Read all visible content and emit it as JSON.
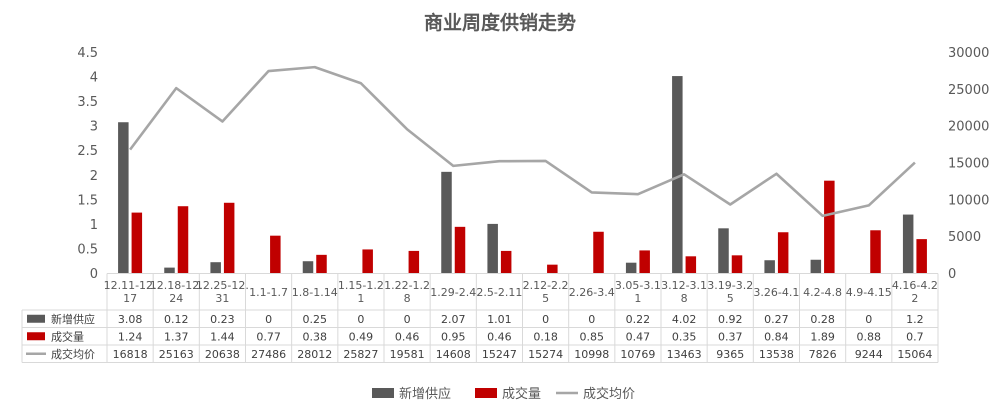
{
  "chart_data": {
    "type": "bar",
    "title": "商业周度供销走势",
    "categories": [
      "12.11-12.17",
      "12.18-12.24",
      "12.25-12.31",
      "1.1-1.7",
      "1.8-1.14",
      "1.15-1.21",
      "1.22-1.28",
      "1.29-2.4",
      "2.5-2.11",
      "2.12-2.25",
      "2.26-3.4",
      "3.05-3.11",
      "3.12-3.18",
      "3.19-3.25",
      "3.26-4.1",
      "4.2-4.8",
      "4.9-4.15",
      "4.16-4.22"
    ],
    "category_labels": [
      [
        "12.11-12.",
        "17"
      ],
      [
        "12.18-12.",
        "24"
      ],
      [
        "12.25-12.",
        "31"
      ],
      [
        "1.1-1.7"
      ],
      [
        "1.8-1.14"
      ],
      [
        "1.15-1.2",
        "1"
      ],
      [
        "1.22-1.2",
        "8"
      ],
      [
        "1.29-2.4"
      ],
      [
        "2.5-2.11"
      ],
      [
        "2.12-2.2",
        "5"
      ],
      [
        "2.26-3.4"
      ],
      [
        "3.05-3.1",
        "1"
      ],
      [
        "3.12-3.1",
        "8"
      ],
      [
        "3.19-3.2",
        "5"
      ],
      [
        "3.26-4.1"
      ],
      [
        "4.2-4.8"
      ],
      [
        "4.9-4.15"
      ],
      [
        "4.16-4.2",
        "2"
      ]
    ],
    "series": [
      {
        "name": "新增供应",
        "type": "bar",
        "axis": "left",
        "color": "#595959",
        "values": [
          3.08,
          0.12,
          0.23,
          0,
          0.25,
          0,
          0,
          2.07,
          1.01,
          0,
          0,
          0.22,
          4.02,
          0.92,
          0.27,
          0.28,
          0,
          1.2
        ]
      },
      {
        "name": "成交量",
        "type": "bar",
        "axis": "left",
        "color": "#c00000",
        "values": [
          1.24,
          1.37,
          1.44,
          0.77,
          0.38,
          0.49,
          0.46,
          0.95,
          0.46,
          0.18,
          0.85,
          0.47,
          0.35,
          0.37,
          0.84,
          1.89,
          0.88,
          0.7
        ]
      },
      {
        "name": "成交均价",
        "type": "line",
        "axis": "right",
        "color": "#a6a6a6",
        "values": [
          16818,
          25163,
          20638,
          27486,
          28012,
          25827,
          19581,
          14608,
          15247,
          15274,
          10998,
          10769,
          13463,
          9365,
          13538,
          7826,
          9244,
          15064
        ]
      }
    ],
    "y_left": {
      "min": 0,
      "max": 4.5,
      "ticks": [
        "0",
        "0.5",
        "1",
        "1.5",
        "2",
        "2.5",
        "3",
        "3.5",
        "4",
        "4.5"
      ]
    },
    "y_right": {
      "min": 0,
      "max": 30000,
      "ticks": [
        "0",
        "5000",
        "10000",
        "15000",
        "20000",
        "25000",
        "30000"
      ]
    },
    "data_table": true,
    "legend_position": "bottom",
    "grid": false
  }
}
